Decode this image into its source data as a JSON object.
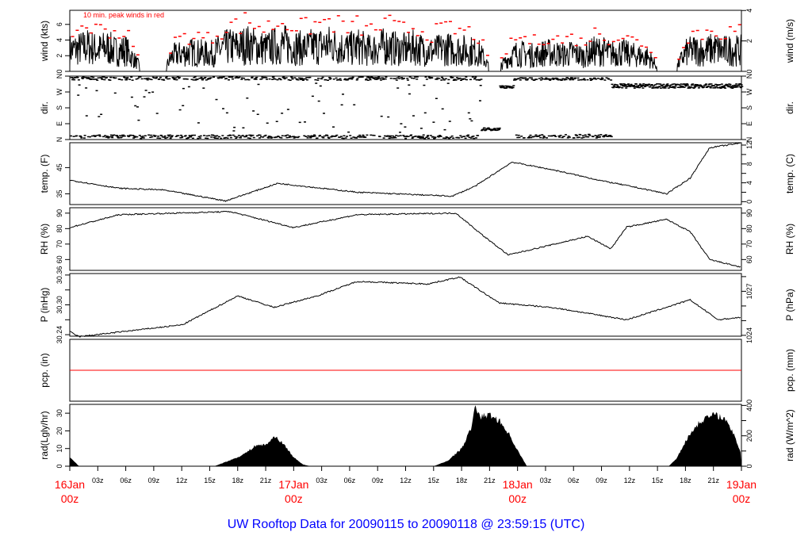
{
  "title": "UW Rooftop Data for 20090115  to  20090118 @ 23:59:15  (UTC)",
  "colors": {
    "title": "#0000ff",
    "peak": "#ff0000",
    "date": "#ff0000",
    "trace": "#000000"
  },
  "chart_data": {
    "type": "line",
    "x_unit": "hours since 16Jan 00z (UTC)",
    "xlim": [
      0,
      72
    ],
    "x_major_labels": [
      {
        "h": 0,
        "l1": "16Jan",
        "l2": "00z"
      },
      {
        "h": 24,
        "l1": "17Jan",
        "l2": "00z"
      },
      {
        "h": 48,
        "l1": "18Jan",
        "l2": "00z"
      },
      {
        "h": 72,
        "l1": "19Jan",
        "l2": "00z"
      }
    ],
    "x_minor_labels": [
      "03z",
      "06z",
      "09z",
      "12z",
      "15z",
      "18z",
      "21z"
    ],
    "panels": [
      {
        "id": "wind",
        "left_label": "wind (kts)",
        "right_label": "wind (m/s)",
        "ylim": [
          0,
          7.8
        ],
        "left_ticks": [
          0,
          2,
          4,
          6
        ],
        "right_ticks": [
          0,
          2,
          4
        ],
        "right_factor": 0.5144,
        "annotation": "10 min. peak winds in red",
        "hourly_mean": [
          3,
          3.2,
          3.5,
          3,
          3.4,
          2.8,
          3,
          1.5,
          0,
          0,
          0,
          2.2,
          2.5,
          2.7,
          2.6,
          2.4,
          3,
          3.5,
          3.4,
          3.8,
          3.5,
          3.2,
          3.6,
          3.8,
          3.5,
          3.2,
          3.5,
          3.6,
          3.8,
          3.4,
          3.2,
          3.5,
          3,
          3.3,
          3.6,
          3.2,
          3.1,
          3.4,
          3,
          2.8,
          3.2,
          3.1,
          3,
          2.9,
          2.5,
          0.6,
          0.5,
          1.8,
          2.6,
          2.4,
          2.2,
          2.7,
          2.5,
          2.3,
          2.6,
          2.1,
          2.8,
          2.9,
          2.5,
          2.7,
          2.4,
          2.2,
          2,
          0.7,
          0.6,
          0.5,
          2.6,
          3,
          2.8,
          3.2,
          2.9,
          3,
          2.9
        ]
      },
      {
        "id": "dir",
        "left_label": "dir.",
        "right_label": "dir.",
        "ylim": [
          0,
          360
        ],
        "tick_values": [
          0,
          90,
          180,
          270,
          360
        ],
        "tick_labels": [
          "N",
          "E",
          "S",
          "W",
          "N"
        ],
        "segments": [
          {
            "from": 0,
            "to": 44,
            "mode": "N/E mix"
          },
          {
            "from": 44,
            "to": 47.5,
            "mode": "E to WNW"
          },
          {
            "from": 47.5,
            "to": 58,
            "mode": "N/NE mix"
          },
          {
            "from": 58,
            "to": 72,
            "mode": "NW"
          }
        ]
      },
      {
        "id": "temp",
        "left_label": "temp. (F)",
        "right_label": "temp. (C)",
        "ylim": [
          30.9,
          54.5
        ],
        "left_ticks": [
          35,
          45
        ],
        "right_ticks_C": [
          0,
          4,
          8,
          12
        ],
        "anchors": [
          [
            0,
            40.2
          ],
          [
            5.3,
            37.1
          ],
          [
            10,
            36.5
          ],
          [
            16.7,
            32.3
          ],
          [
            22.3,
            39
          ],
          [
            30.8,
            35.6
          ],
          [
            41,
            34.1
          ],
          [
            43.5,
            38
          ],
          [
            47.4,
            47.1
          ],
          [
            52,
            44
          ],
          [
            57,
            40
          ],
          [
            60.5,
            37.6
          ],
          [
            64,
            35
          ],
          [
            66.5,
            41
          ],
          [
            68.6,
            52.6
          ],
          [
            72,
            54.4
          ]
        ]
      },
      {
        "id": "rh",
        "left_label": "RH (%)",
        "right_label": "RH (%)",
        "ylim": [
          53,
          93.5
        ],
        "left_ticks": [
          60,
          70,
          80,
          90
        ],
        "right_ticks": [
          60,
          70,
          80,
          90
        ],
        "anchors": [
          [
            0,
            80.7
          ],
          [
            5.3,
            89
          ],
          [
            17.2,
            91
          ],
          [
            24,
            80.7
          ],
          [
            30.8,
            89
          ],
          [
            41.4,
            90
          ],
          [
            44.4,
            75
          ],
          [
            47,
            63
          ],
          [
            52,
            70
          ],
          [
            55.5,
            75
          ],
          [
            58,
            67
          ],
          [
            59.7,
            81
          ],
          [
            64,
            86
          ],
          [
            66.5,
            78
          ],
          [
            68.6,
            60
          ],
          [
            72,
            55
          ]
        ]
      },
      {
        "id": "pres",
        "left_label": "P (inHg)",
        "right_label": "P (hPa)",
        "ylim": [
          30.237,
          30.363
        ],
        "left_ticks": [
          30.24,
          30.3,
          30.36
        ],
        "right_ticks_hPa": [
          1024,
          1027
        ],
        "anchors": [
          [
            0,
            30.246
          ],
          [
            1,
            30.236
          ],
          [
            12.1,
            30.26
          ],
          [
            18,
            30.318
          ],
          [
            21.9,
            30.295
          ],
          [
            26.5,
            30.318
          ],
          [
            30.8,
            30.347
          ],
          [
            38.4,
            30.342
          ],
          [
            41.8,
            30.356
          ],
          [
            46,
            30.304
          ],
          [
            52,
            30.294
          ],
          [
            59.7,
            30.27
          ],
          [
            66.5,
            30.31
          ],
          [
            69.5,
            30.27
          ],
          [
            72,
            30.275
          ]
        ]
      },
      {
        "id": "pcp",
        "left_label": "pcp. (in)",
        "right_label": "pcp. (mm)",
        "ylim": [
          -1,
          1
        ],
        "values_constant": 0
      },
      {
        "id": "rad",
        "left_label": "rad(Lgly/hr)",
        "right_label": "rad (W/m^2)",
        "ylim": [
          0,
          35
        ],
        "left_ticks": [
          0,
          10,
          20,
          30
        ],
        "right_ticks": [
          0,
          200,
          400
        ],
        "right_factor": 11.63,
        "anchors": [
          [
            0,
            5
          ],
          [
            1,
            0
          ],
          [
            15.5,
            0
          ],
          [
            17,
            3
          ],
          [
            18,
            5
          ],
          [
            19,
            8
          ],
          [
            20,
            12
          ],
          [
            21,
            12
          ],
          [
            22,
            17
          ],
          [
            23,
            12
          ],
          [
            24,
            5
          ],
          [
            25,
            1
          ],
          [
            25.8,
            0
          ],
          [
            39,
            0
          ],
          [
            40.5,
            3
          ],
          [
            42,
            10
          ],
          [
            43,
            21
          ],
          [
            43.5,
            34
          ],
          [
            44,
            28
          ],
          [
            45,
            29
          ],
          [
            46,
            26
          ],
          [
            47,
            19
          ],
          [
            48,
            9
          ],
          [
            49,
            0
          ],
          [
            64.2,
            0
          ],
          [
            65,
            4
          ],
          [
            66,
            14
          ],
          [
            67,
            22
          ],
          [
            68,
            27
          ],
          [
            69,
            29
          ],
          [
            70,
            28
          ],
          [
            71,
            20
          ],
          [
            72,
            7
          ]
        ]
      }
    ]
  }
}
